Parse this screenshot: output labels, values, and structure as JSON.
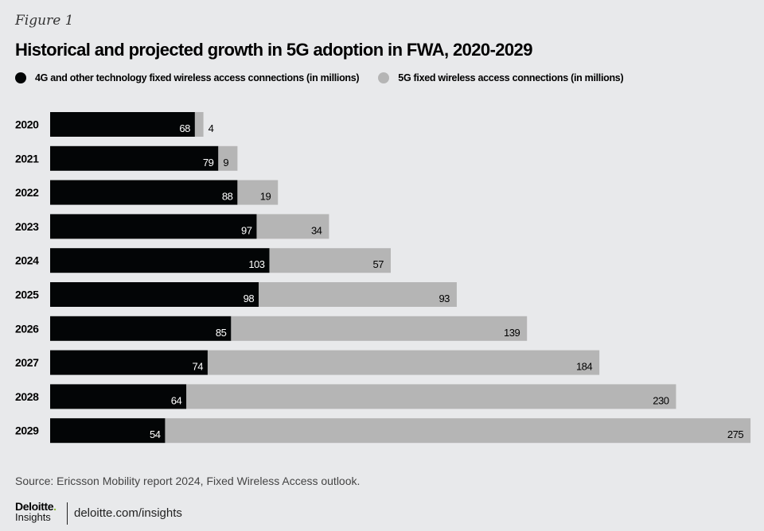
{
  "figure_label": "Figure 1",
  "source": "Source: Ericsson Mobility report 2024, Fixed Wireless Access outlook.",
  "footer": {
    "brand": "Deloitte",
    "brand_dot": ".",
    "sub": "Insights",
    "url": "deloitte.com/insights"
  },
  "colors": {
    "background": "#e8e9eb",
    "series_4g": "#030506",
    "series_5g": "#b5b5b5",
    "brand_green": "#86bc25"
  },
  "chart_data": {
    "type": "bar",
    "orientation": "horizontal",
    "stacked": true,
    "title": "Historical and projected growth in 5G adoption in FWA, 2020-2029",
    "xlabel": "",
    "ylabel": "",
    "legend_position": "top-left",
    "grid": false,
    "categories": [
      "2020",
      "2021",
      "2022",
      "2023",
      "2024",
      "2025",
      "2026",
      "2027",
      "2028",
      "2029"
    ],
    "series": [
      {
        "name": "4G and other technology fixed wireless access connections (in millions)",
        "color": "#030506",
        "values": [
          68,
          79,
          88,
          97,
          103,
          98,
          85,
          74,
          64,
          54
        ]
      },
      {
        "name": "5G fixed wireless access connections (in millions)",
        "color": "#b5b5b5",
        "values": [
          4,
          9,
          19,
          34,
          57,
          93,
          139,
          184,
          230,
          275
        ]
      }
    ],
    "xlim": [
      0,
      330
    ]
  }
}
